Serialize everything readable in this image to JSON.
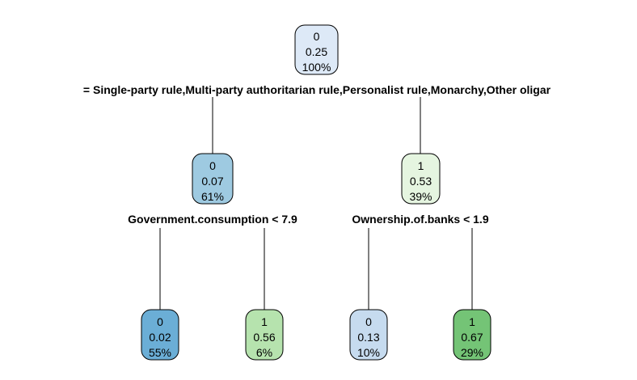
{
  "tree": {
    "nodes": [
      {
        "id": "root",
        "lines": [
          "0",
          "0.25",
          "100%"
        ],
        "color": "#dde9f7"
      },
      {
        "id": "n-left",
        "lines": [
          "0",
          "0.07",
          "61%"
        ],
        "color": "#9ecae1"
      },
      {
        "id": "n-right",
        "lines": [
          "1",
          "0.53",
          "39%"
        ],
        "color": "#e5f5e0"
      },
      {
        "id": "leaf-1",
        "lines": [
          "0",
          "0.02",
          "55%"
        ],
        "color": "#6baed6"
      },
      {
        "id": "leaf-2",
        "lines": [
          "1",
          "0.56",
          "6%"
        ],
        "color": "#b6e3ae"
      },
      {
        "id": "leaf-3",
        "lines": [
          "0",
          "0.13",
          "10%"
        ],
        "color": "#c6dbef"
      },
      {
        "id": "leaf-4",
        "lines": [
          "1",
          "0.67",
          "29%"
        ],
        "color": "#74c476"
      }
    ],
    "splits": [
      {
        "id": "split-root",
        "label": "= Single-party rule,Multi-party authoritarian rule,Personalist rule,Monarchy,Other oligar"
      },
      {
        "id": "split-left",
        "label": "Government.consumption < 7.9"
      },
      {
        "id": "split-right",
        "label": "Ownership.of.banks < 1.9"
      }
    ]
  }
}
